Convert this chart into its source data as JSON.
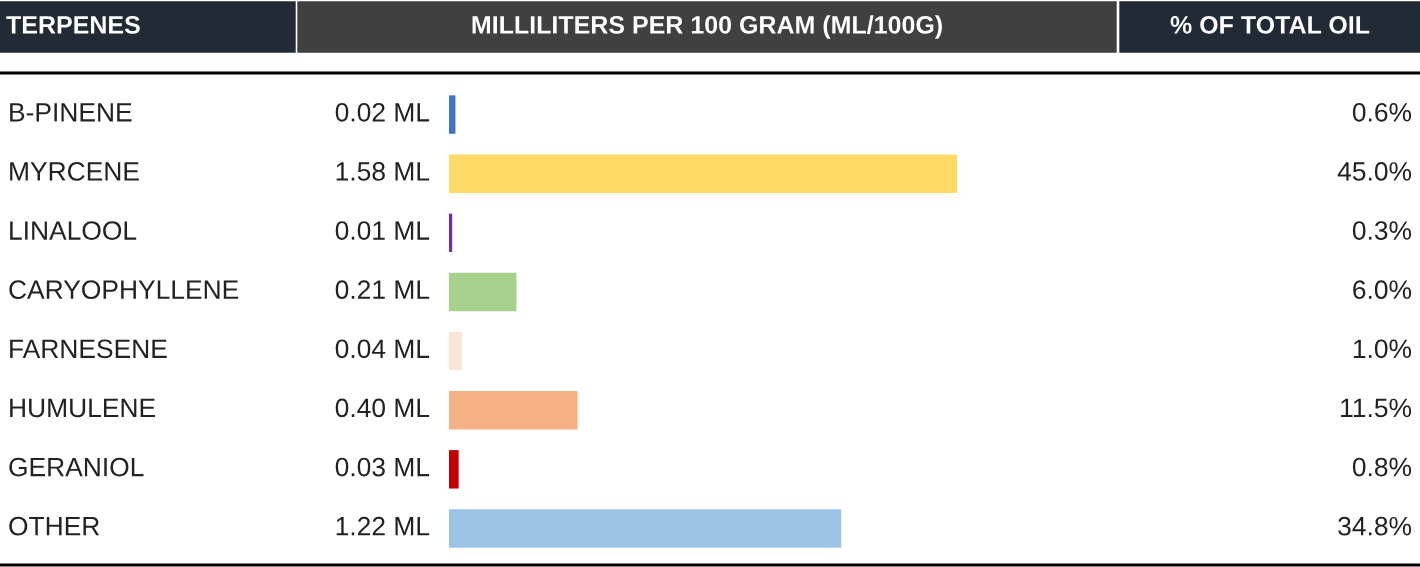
{
  "chart_data": {
    "type": "bar",
    "orientation": "horizontal",
    "title": "MILLILITERS PER 100 GRAM (ML/100G)",
    "ylabel": "TERPENES",
    "categories": [
      "B-PINENE",
      "MYRCENE",
      "LINALOOL",
      "CARYOPHYLLENE",
      "FARNESENE",
      "HUMULENE",
      "GERANIOL",
      "OTHER"
    ],
    "values": [
      0.02,
      1.58,
      0.01,
      0.21,
      0.04,
      0.4,
      0.03,
      1.22
    ],
    "value_labels": [
      "0.02 ML",
      "1.58 ML",
      "0.01 ML",
      "0.21 ML",
      "0.04 ML",
      "0.40 ML",
      "0.03 ML",
      "1.22 ML"
    ],
    "colors": [
      "#4472c4",
      "#ffd966",
      "#7030a0",
      "#a9d18e",
      "#fbe5d6",
      "#f4b183",
      "#c00000",
      "#9dc3e6"
    ],
    "annotations": [
      "% OF TOTAL OIL",
      "0.6%",
      "45.0%",
      "0.3%",
      "6.0%",
      "1.0%",
      "11.5%",
      "0.8%",
      "34.8%"
    ],
    "legend": false
  }
}
